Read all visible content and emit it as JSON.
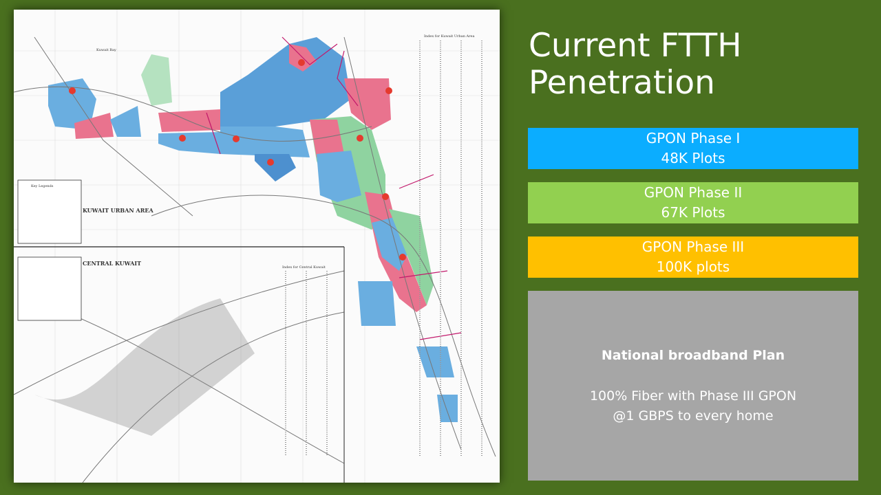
{
  "slide": {
    "title_line1": "Current FTTH",
    "title_line2": "Penetration"
  },
  "phases": [
    {
      "name": "GPON Phase I",
      "plots": "48K Plots",
      "color": "#0badff"
    },
    {
      "name": "GPON Phase II",
      "plots": "67K Plots",
      "color": "#92d050"
    },
    {
      "name": "GPON Phase III",
      "plots": "100K plots",
      "color": "#ffc000"
    }
  ],
  "plan": {
    "heading": "National broadband Plan",
    "line1": "100% Fiber with Phase III GPON",
    "line2": "@1 GBPS to every home"
  },
  "map": {
    "urban_title": "KUWAIT URBAN AREA",
    "central_title": "CENTRAL KUWAIT",
    "bay_label": "Kuwait Bay",
    "urban_index": "Index for Kuwait Urban Area",
    "central_index": "Index for Central Kuwait",
    "legend_title": "Key Legends",
    "zone_colors": {
      "phase1": "#6aaee0",
      "phase2": "#8fd3a0",
      "phase3": "#e9738e"
    }
  }
}
